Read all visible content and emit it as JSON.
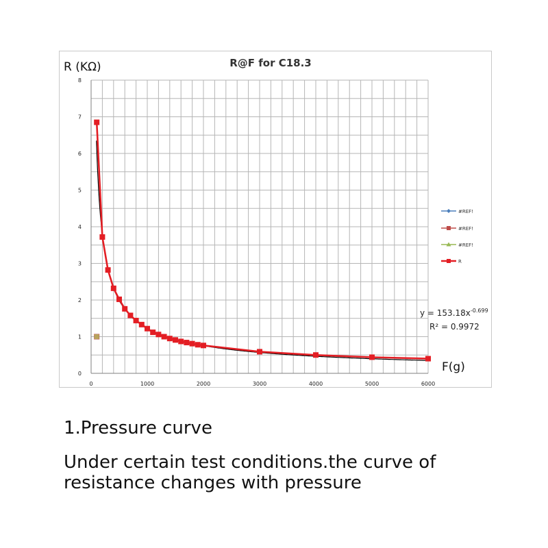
{
  "chart_data": {
    "type": "scatter",
    "title": "R@F  for C18.3",
    "ylabel": "R (KΩ)",
    "xlabel": "F(g)",
    "xlim": [
      0,
      6000
    ],
    "ylim": [
      0,
      8
    ],
    "x_ticks": [
      0,
      1000,
      2000,
      3000,
      4000,
      5000,
      6000
    ],
    "y_ticks": [
      0,
      1,
      2,
      3,
      4,
      5,
      6,
      7,
      8
    ],
    "grid": true,
    "legend_position": "right",
    "legend": [
      "#REF!",
      "#REF!",
      "#REF!",
      "R"
    ],
    "series": [
      {
        "name": "#REF!",
        "color": "#4a7ebb",
        "marker": "diamond",
        "x": [
          100
        ],
        "y": [
          1.0
        ]
      },
      {
        "name": "#REF!",
        "color": "#be4b48",
        "marker": "square",
        "x": [
          100
        ],
        "y": [
          1.0
        ]
      },
      {
        "name": "#REF!",
        "color": "#98b954",
        "marker": "triangle",
        "x": [
          100
        ],
        "y": [
          1.0
        ]
      },
      {
        "name": "R",
        "color": "#e31e24",
        "marker": "square",
        "x": [
          100,
          200,
          300,
          400,
          500,
          600,
          700,
          800,
          900,
          1000,
          1100,
          1200,
          1300,
          1400,
          1500,
          1600,
          1700,
          1800,
          1900,
          2000,
          3000,
          4000,
          5000,
          6000
        ],
        "y": [
          6.85,
          3.72,
          2.82,
          2.32,
          2.02,
          1.76,
          1.58,
          1.44,
          1.33,
          1.22,
          1.12,
          1.06,
          1.0,
          0.95,
          0.91,
          0.87,
          0.84,
          0.81,
          0.78,
          0.76,
          0.59,
          0.5,
          0.44,
          0.4
        ]
      }
    ],
    "trendline": {
      "type": "power",
      "coefficient": 153.18,
      "exponent": -0.699,
      "color": "#000000",
      "label_y_prefix": "y = 153.18x",
      "label_exponent": "-0.699",
      "label_r2": "R² = 0.9972"
    }
  },
  "text": {
    "heading": "1.Pressure curve",
    "body": "Under certain test conditions.the curve of resistance changes with pressure"
  }
}
